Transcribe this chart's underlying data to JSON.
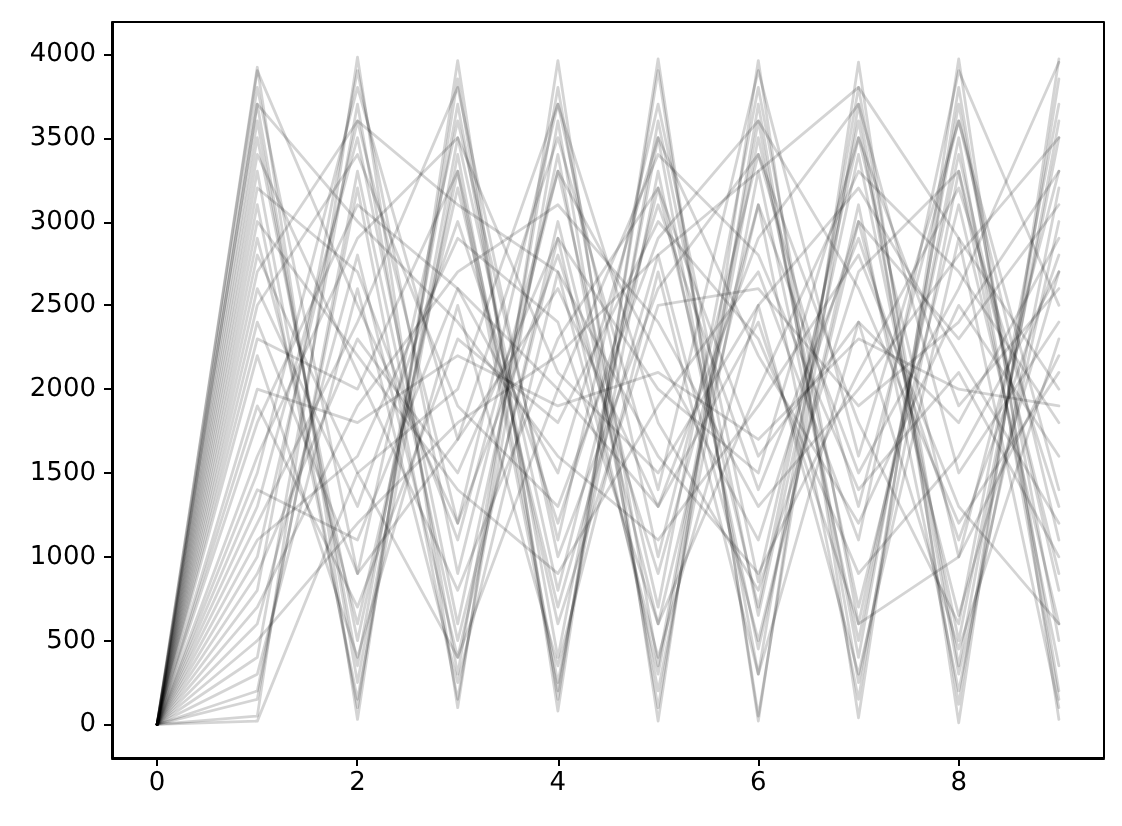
{
  "chart_data": {
    "type": "line",
    "x": [
      0,
      1,
      2,
      3,
      4,
      5,
      6,
      7,
      8,
      9
    ],
    "xlim": [
      -0.45,
      9.45
    ],
    "xticks": [
      0,
      2,
      4,
      6,
      8
    ],
    "ylim": [
      -200,
      4190
    ],
    "yticks": [
      0,
      500,
      1000,
      1500,
      2000,
      2500,
      3000,
      3500,
      4000
    ],
    "series": [
      {
        "color": "#000000",
        "values": [
          0,
          3920,
          30,
          3960,
          80,
          3970,
          20,
          3950,
          10,
          3970
        ]
      },
      {
        "color": "#000000",
        "values": [
          0,
          3600,
          350,
          3700,
          400,
          3500,
          300,
          3800,
          350,
          3600
        ]
      },
      {
        "color": "#000000",
        "values": [
          0,
          3100,
          150,
          3400,
          250,
          3300,
          450,
          3100,
          200,
          3200
        ]
      },
      {
        "color": "#000000",
        "values": [
          0,
          2900,
          600,
          3200,
          700,
          2800,
          500,
          3000,
          650,
          2700
        ]
      },
      {
        "color": "#000000",
        "values": [
          0,
          3800,
          900,
          3600,
          1100,
          3700,
          850,
          3500,
          1000,
          3300
        ]
      },
      {
        "color": "#000000",
        "values": [
          0,
          3300,
          100,
          3850,
          150,
          3900,
          50,
          3700,
          120,
          3850
        ]
      },
      {
        "color": "#000000",
        "values": [
          0,
          2600,
          1300,
          3000,
          1200,
          3100,
          1400,
          2900,
          1100,
          2800
        ]
      },
      {
        "color": "#000000",
        "values": [
          0,
          3500,
          500,
          3300,
          200,
          3600,
          650,
          3400,
          500,
          3500
        ]
      },
      {
        "color": "#000000",
        "values": [
          0,
          2200,
          400,
          2500,
          350,
          2700,
          300,
          2400,
          450,
          2300
        ]
      },
      {
        "color": "#000000",
        "values": [
          0,
          3700,
          250,
          3500,
          800,
          3200,
          700,
          3600,
          300,
          3000
        ]
      },
      {
        "color": "#000000",
        "values": [
          0,
          50,
          3980,
          100,
          3960,
          20,
          3960,
          40,
          3970,
          30
        ]
      },
      {
        "color": "#000000",
        "values": [
          0,
          400,
          3700,
          300,
          3800,
          350,
          3600,
          400,
          3700,
          500
        ]
      },
      {
        "color": "#000000",
        "values": [
          0,
          1300,
          3500,
          600,
          3400,
          200,
          3300,
          500,
          3500,
          150
        ]
      },
      {
        "color": "#000000",
        "values": [
          0,
          800,
          3900,
          900,
          3300,
          700,
          3800,
          600,
          3400,
          800
        ]
      },
      {
        "color": "#000000",
        "values": [
          0,
          200,
          3200,
          150,
          3600,
          100,
          3700,
          250,
          3300,
          350
        ]
      },
      {
        "color": "#000000",
        "values": [
          0,
          600,
          2800,
          400,
          3000,
          600,
          3100,
          150,
          3800,
          200
        ]
      },
      {
        "color": "#000000",
        "values": [
          0,
          1000,
          3600,
          1200,
          3700,
          1000,
          3400,
          1300,
          3600,
          1100
        ]
      },
      {
        "color": "#000000",
        "values": [
          0,
          150,
          3300,
          500,
          2900,
          300,
          3500,
          700,
          3100,
          600
        ]
      },
      {
        "color": "#000000",
        "values": [
          0,
          1500,
          3800,
          1700,
          3500,
          1400,
          3900,
          1600,
          3600,
          1400
        ]
      },
      {
        "color": "#000000",
        "values": [
          0,
          300,
          2600,
          250,
          2700,
          400,
          2500,
          300,
          2900,
          100
        ]
      },
      {
        "color": "#000000",
        "values": [
          0,
          2000,
          1800,
          2200,
          1900,
          2100,
          1700,
          2300,
          2000,
          1900
        ]
      },
      {
        "color": "#000000",
        "values": [
          0,
          3900,
          2500,
          1200,
          2800,
          900,
          3100,
          1500,
          2600,
          3950
        ]
      },
      {
        "color": "#000000",
        "values": [
          0,
          1200,
          2400,
          3800,
          1000,
          2600,
          3400,
          1800,
          600,
          3700
        ]
      },
      {
        "color": "#000000",
        "values": [
          0,
          2800,
          1500,
          2000,
          3700,
          1800,
          800,
          2700,
          3300,
          900
        ]
      },
      {
        "color": "#000000",
        "values": [
          0,
          1800,
          3100,
          2600,
          1500,
          3500,
          2200,
          1200,
          2500,
          1600
        ]
      },
      {
        "color": "#000000",
        "values": [
          0,
          2400,
          900,
          1700,
          2600,
          1300,
          2900,
          3700,
          1500,
          2400
        ]
      },
      {
        "color": "#000000",
        "values": [
          0,
          3400,
          2100,
          800,
          2300,
          3200,
          1600,
          2400,
          1800,
          2900
        ]
      },
      {
        "color": "#000000",
        "values": [
          0,
          1600,
          2900,
          3500,
          2100,
          1500,
          2500,
          3200,
          2200,
          1200
        ]
      },
      {
        "color": "#000000",
        "values": [
          0,
          700,
          1900,
          2700,
          3100,
          2400,
          1300,
          2000,
          2800,
          3500
        ]
      },
      {
        "color": "#000000",
        "values": [
          0,
          3000,
          2200,
          1400,
          900,
          1900,
          2700,
          1100,
          3900,
          2500
        ]
      },
      {
        "color": "#000000",
        "values": [
          0,
          2500,
          3400,
          1900,
          1300,
          2900,
          3600,
          2600,
          1200,
          2100
        ]
      },
      {
        "color": "#000000",
        "values": [
          0,
          1100,
          1600,
          2900,
          2400,
          600,
          2000,
          3300,
          2700,
          1800
        ]
      },
      {
        "color": "#000000",
        "values": [
          0,
          3200,
          2700,
          1100,
          3300,
          2200,
          1100,
          3000,
          2300,
          3100
        ]
      },
      {
        "color": "#000000",
        "values": [
          0,
          1900,
          700,
          2300,
          1800,
          3000,
          2300,
          900,
          1600,
          2700
        ]
      },
      {
        "color": "#000000",
        "values": [
          0,
          2700,
          3600,
          3100,
          2700,
          1600,
          900,
          2100,
          3200,
          1300
        ]
      },
      {
        "color": "#000000",
        "values": [
          0,
          500,
          1200,
          1800,
          2200,
          2800,
          3300,
          3800,
          2900,
          2000
        ]
      },
      {
        "color": "#000000",
        "values": [
          0,
          3700,
          3000,
          2400,
          1600,
          1100,
          1900,
          2800,
          1300,
          600
        ]
      },
      {
        "color": "#000000",
        "values": [
          0,
          2300,
          2000,
          3300,
          600,
          2500,
          2600,
          1900,
          2400,
          3300
        ]
      },
      {
        "color": "#000000",
        "values": [
          0,
          900,
          2300,
          1500,
          2900,
          2000,
          1500,
          3500,
          1900,
          2600
        ]
      },
      {
        "color": "#000000",
        "values": [
          0,
          1400,
          1100,
          2600,
          2000,
          3400,
          2800,
          1400,
          2100,
          1000
        ]
      },
      {
        "color": "#000000",
        "values": [
          0,
          20,
          1500,
          400,
          2000,
          1300,
          2400,
          600,
          1000,
          2200
        ]
      }
    ]
  }
}
